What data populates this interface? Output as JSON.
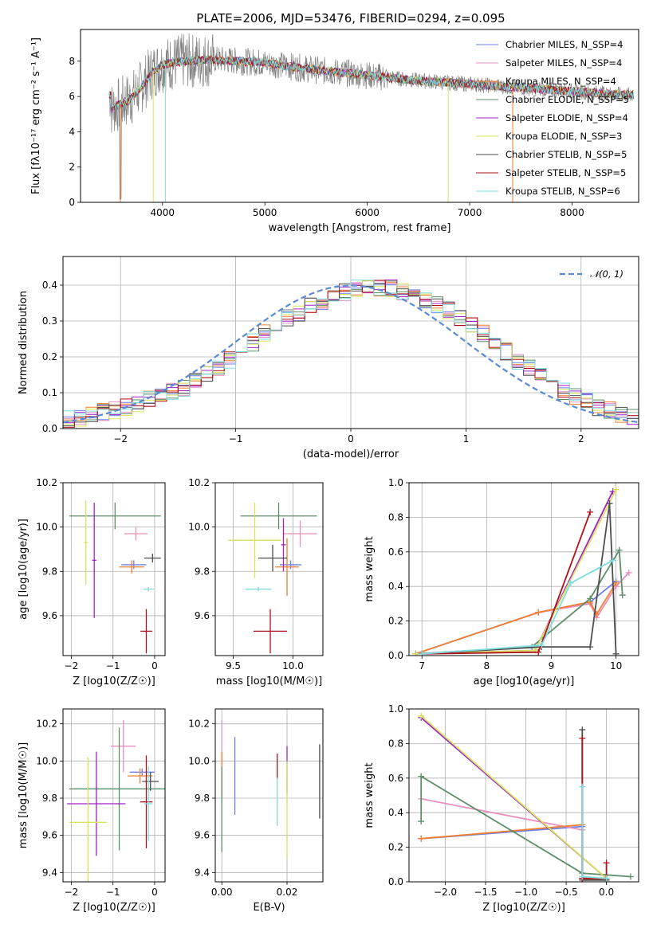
{
  "colors": {
    "chabrier_miles": "#6f7ee8",
    "salpeter_miles": "#e88fc0",
    "kroupa_miles": "#f07f2e",
    "chabrier_elodie": "#5e8f6a",
    "salpeter_elodie": "#a020c8",
    "kroupa_elodie": "#d9e35a",
    "chabrier_stelib": "#4f4f4f",
    "salpeter_stelib": "#b0101a",
    "kroupa_stelib": "#7fdde0",
    "data_spectrum": "#808080",
    "normal_curve": "#5b8ad6"
  },
  "chart_data": [
    {
      "type": "line",
      "title": "PLATE=2006, MJD=53476, FIBERID=0294, z=0.095",
      "xlabel": "wavelength [Angstrom, rest frame]",
      "ylabel": "Flux [fλ10⁻¹⁷ erg cm⁻² s⁻¹ A⁻¹]",
      "xlim": [
        3200,
        8650
      ],
      "ylim": [
        0,
        9.8
      ],
      "xticks": [
        "4000",
        "5000",
        "6000",
        "7000",
        "8000"
      ],
      "yticks": [
        "0",
        "2",
        "4",
        "6",
        "8"
      ],
      "legend_placement": "right",
      "legend": [
        "Chabrier MILES, N_SSP=4",
        "Salpeter MILES, N_SSP=4",
        "Kroupa MILES, N_SSP=4",
        "Chabrier ELODIE, N_SSP=5",
        "Salpeter ELODIE, N_SSP=4",
        "Kroupa ELODIE, N_SSP=3",
        "Chabrier STELIB, N_SSP=5",
        "Salpeter STELIB, N_SSP=5",
        "Kroupa STELIB, N_SSP=6"
      ],
      "continuum": [
        [
          3500,
          5.3
        ],
        [
          3600,
          5.6
        ],
        [
          3700,
          5.9
        ],
        [
          3800,
          6.6
        ],
        [
          3900,
          7.4
        ],
        [
          4000,
          7.8
        ],
        [
          4200,
          8.0
        ],
        [
          4500,
          8.1
        ],
        [
          5000,
          7.9
        ],
        [
          5500,
          7.5
        ],
        [
          6000,
          7.2
        ],
        [
          6500,
          6.9
        ],
        [
          7000,
          6.7
        ],
        [
          7500,
          6.5
        ],
        [
          8000,
          6.3
        ],
        [
          8500,
          6.1
        ]
      ]
    },
    {
      "type": "line",
      "xlabel": "(data-model)/error",
      "ylabel": "Normed distribution",
      "xlim": [
        -2.5,
        2.5
      ],
      "ylim": [
        0,
        0.48
      ],
      "xticks": [
        "−2",
        "−1",
        "0",
        "1",
        "2"
      ],
      "yticks": [
        "0.0",
        "0.1",
        "0.2",
        "0.3",
        "0.4"
      ],
      "grid": true,
      "legend_placement": "top-right",
      "legend": [
        "𝒩(0, 1)"
      ],
      "bin_width": 0.1,
      "hist_centers_start": -2.45,
      "hist_values": [
        0.025,
        0.03,
        0.04,
        0.045,
        0.05,
        0.06,
        0.07,
        0.08,
        0.095,
        0.105,
        0.115,
        0.13,
        0.15,
        0.17,
        0.19,
        0.215,
        0.24,
        0.265,
        0.285,
        0.31,
        0.32,
        0.34,
        0.355,
        0.37,
        0.38,
        0.39,
        0.39,
        0.395,
        0.39,
        0.38,
        0.37,
        0.36,
        0.345,
        0.33,
        0.31,
        0.29,
        0.265,
        0.24,
        0.215,
        0.19,
        0.17,
        0.145,
        0.125,
        0.105,
        0.09,
        0.075,
        0.06,
        0.05,
        0.04,
        0.03
      ]
    },
    {
      "type": "scatter",
      "xlabel": "Z [log10(Z/Z☉)]",
      "ylabel": "age  [log10(age/yr)]",
      "xlim": [
        -2.2,
        0.25
      ],
      "ylim": [
        9.42,
        10.2
      ],
      "xticks": [
        "−2",
        "−1",
        "0"
      ],
      "yticks": [
        "9.6",
        "9.8",
        "10.0",
        "10.2"
      ],
      "grid": true,
      "points": [
        {
          "model": "chabrier_miles",
          "x": -0.5,
          "y": 9.83,
          "xerr": 0.3,
          "yerr": 0.02
        },
        {
          "model": "salpeter_miles",
          "x": -0.45,
          "y": 9.97,
          "xerr": 0.28,
          "yerr": 0.03
        },
        {
          "model": "kroupa_miles",
          "x": -0.55,
          "y": 9.82,
          "xerr": 0.3,
          "yerr": 0.03
        },
        {
          "model": "chabrier_elodie",
          "x": -0.95,
          "y": 10.05,
          "xerr": 1.1,
          "yerr": 0.06
        },
        {
          "model": "salpeter_elodie",
          "x": -1.45,
          "y": 9.85,
          "xerr": 0.05,
          "yerr": 0.26
        },
        {
          "model": "kroupa_elodie",
          "x": -1.65,
          "y": 9.93,
          "xerr": 0.05,
          "yerr": 0.19
        },
        {
          "model": "chabrier_stelib",
          "x": -0.05,
          "y": 9.86,
          "xerr": 0.2,
          "yerr": 0.02
        },
        {
          "model": "salpeter_stelib",
          "x": -0.2,
          "y": 9.53,
          "xerr": 0.14,
          "yerr": 0.1
        },
        {
          "model": "kroupa_stelib",
          "x": -0.15,
          "y": 9.72,
          "xerr": 0.13,
          "yerr": 0.01
        }
      ]
    },
    {
      "type": "scatter",
      "xlabel": "mass [log10(M/M☉)]",
      "xlim": [
        9.35,
        10.25
      ],
      "ylim": [
        9.42,
        10.2
      ],
      "xticks": [
        "9.5",
        "10.0"
      ],
      "yticks": [
        "9.6",
        "9.8",
        "10.0",
        "10.2"
      ],
      "grid": true,
      "points": [
        {
          "model": "chabrier_miles",
          "x": 9.98,
          "y": 9.83,
          "xerr": 0.09,
          "yerr": 0.02
        },
        {
          "model": "salpeter_miles",
          "x": 10.06,
          "y": 9.97,
          "xerr": 0.14,
          "yerr": 0.06
        },
        {
          "model": "kroupa_miles",
          "x": 9.95,
          "y": 9.82,
          "xerr": 0.1,
          "yerr": 0.13
        },
        {
          "model": "chabrier_elodie",
          "x": 9.88,
          "y": 10.05,
          "xerr": 0.32,
          "yerr": 0.06
        },
        {
          "model": "salpeter_elodie",
          "x": 9.92,
          "y": 9.92,
          "xerr": 0.02,
          "yerr": 0.12
        },
        {
          "model": "kroupa_elodie",
          "x": 9.68,
          "y": 9.94,
          "xerr": 0.22,
          "yerr": 0.17
        },
        {
          "model": "chabrier_stelib",
          "x": 9.83,
          "y": 9.86,
          "xerr": 0.12,
          "yerr": 0.06
        },
        {
          "model": "salpeter_stelib",
          "x": 9.81,
          "y": 9.53,
          "xerr": 0.14,
          "yerr": 0.1
        },
        {
          "model": "kroupa_stelib",
          "x": 9.71,
          "y": 9.72,
          "xerr": 0.11,
          "yerr": 0.01
        }
      ]
    },
    {
      "type": "line",
      "xlabel": "age  [log10(age/yr)]",
      "ylabel": "mass weight",
      "xlim": [
        6.8,
        10.35
      ],
      "ylim": [
        0,
        1.0
      ],
      "xticks": [
        "7",
        "8",
        "9",
        "10"
      ],
      "yticks": [
        "0.0",
        "0.2",
        "0.4",
        "0.6",
        "0.8",
        "1.0"
      ],
      "grid": true,
      "series": [
        {
          "model": "chabrier_miles",
          "x": [
            6.9,
            8.8,
            9.6,
            10.0
          ],
          "y": [
            0.01,
            0.25,
            0.31,
            0.43
          ]
        },
        {
          "model": "salpeter_miles",
          "x": [
            6.9,
            8.8,
            9.6,
            9.7,
            10.0,
            10.2
          ],
          "y": [
            0.01,
            0.25,
            0.3,
            0.22,
            0.4,
            0.48
          ]
        },
        {
          "model": "kroupa_miles",
          "x": [
            6.9,
            8.8,
            9.6,
            9.7,
            10.0
          ],
          "y": [
            0.01,
            0.25,
            0.31,
            0.24,
            0.42
          ]
        },
        {
          "model": "chabrier_elodie",
          "x": [
            6.9,
            8.7,
            9.6,
            10.05,
            10.1
          ],
          "y": [
            0.01,
            0.05,
            0.33,
            0.61,
            0.35
          ]
        },
        {
          "model": "salpeter_elodie",
          "x": [
            6.9,
            8.75,
            9.95
          ],
          "y": [
            0.01,
            0.03,
            0.95
          ]
        },
        {
          "model": "kroupa_elodie",
          "x": [
            6.9,
            8.75,
            10.0
          ],
          "y": [
            0.01,
            0.03,
            0.96
          ]
        },
        {
          "model": "chabrier_stelib",
          "x": [
            7.0,
            8.85,
            9.6,
            9.9,
            10.0
          ],
          "y": [
            0.01,
            0.05,
            0.05,
            0.88,
            0.01
          ]
        },
        {
          "model": "salpeter_stelib",
          "x": [
            7.0,
            8.8,
            9.6
          ],
          "y": [
            0.01,
            0.02,
            0.83
          ]
        },
        {
          "model": "kroupa_stelib",
          "x": [
            7.0,
            8.85,
            9.3,
            9.95
          ],
          "y": [
            0.01,
            0.06,
            0.42,
            0.55
          ]
        }
      ]
    },
    {
      "type": "scatter",
      "xlabel": "Z [log10(Z/Z☉)]",
      "ylabel": "mass [log10(M/M☉)]",
      "xlim": [
        -2.2,
        0.25
      ],
      "ylim": [
        9.35,
        10.28
      ],
      "xticks": [
        "−2",
        "−1",
        "0"
      ],
      "yticks": [
        "9.4",
        "9.6",
        "9.8",
        "10.0",
        "10.2"
      ],
      "grid": true,
      "points": [
        {
          "model": "chabrier_miles",
          "x": -0.3,
          "y": 9.94,
          "xerr": 0.3,
          "yerr": 0.02
        },
        {
          "model": "salpeter_miles",
          "x": -0.75,
          "y": 10.08,
          "xerr": 0.3,
          "yerr": 0.14
        },
        {
          "model": "kroupa_miles",
          "x": -0.35,
          "y": 9.92,
          "xerr": 0.3,
          "yerr": 0.04
        },
        {
          "model": "chabrier_elodie",
          "x": -0.85,
          "y": 9.85,
          "xerr": 1.2,
          "yerr": 0.33
        },
        {
          "model": "salpeter_elodie",
          "x": -1.4,
          "y": 9.77,
          "xerr": 0.7,
          "yerr": 0.28
        },
        {
          "model": "kroupa_elodie",
          "x": -1.6,
          "y": 9.67,
          "xerr": 0.45,
          "yerr": 0.35
        },
        {
          "model": "chabrier_stelib",
          "x": -0.1,
          "y": 9.89,
          "xerr": 0.2,
          "yerr": 0.05
        },
        {
          "model": "salpeter_stelib",
          "x": -0.2,
          "y": 9.78,
          "xerr": 0.15,
          "yerr": 0.25
        },
        {
          "model": "kroupa_stelib",
          "x": -0.15,
          "y": 9.77,
          "xerr": 0.1,
          "yerr": 0.2
        }
      ]
    },
    {
      "type": "scatter",
      "xlabel": "E(B-V)",
      "xlim": [
        -0.002,
        0.031
      ],
      "ylim": [
        9.35,
        10.28
      ],
      "xticks": [
        "0.00",
        "0.02"
      ],
      "yticks": [
        "9.4",
        "9.6",
        "9.8",
        "10.0",
        "10.2"
      ],
      "grid": true,
      "points": [
        {
          "model": "chabrier_miles",
          "x": 0.004,
          "y": 9.92,
          "xerr": 0,
          "yerr": 0.21
        },
        {
          "model": "salpeter_miles",
          "x": 0.0,
          "y": 10.1,
          "xerr": 0,
          "yerr": 0.12
        },
        {
          "model": "kroupa_miles",
          "x": 0.0,
          "y": 9.93,
          "xerr": 0,
          "yerr": 0.12
        },
        {
          "model": "chabrier_elodie",
          "x": 0.0,
          "y": 9.74,
          "xerr": 0,
          "yerr": 0.23
        },
        {
          "model": "salpeter_elodie",
          "x": 0.02,
          "y": 9.95,
          "xerr": 0,
          "yerr": 0.13
        },
        {
          "model": "kroupa_elodie",
          "x": 0.02,
          "y": 9.74,
          "xerr": 0,
          "yerr": 0.26
        },
        {
          "model": "chabrier_stelib",
          "x": 0.03,
          "y": 9.89,
          "xerr": 0,
          "yerr": 0.2
        },
        {
          "model": "salpeter_stelib",
          "x": 0.017,
          "y": 9.97,
          "xerr": 0,
          "yerr": 0.07
        },
        {
          "model": "kroupa_stelib",
          "x": 0.017,
          "y": 9.78,
          "xerr": 0,
          "yerr": 0.13
        }
      ]
    },
    {
      "type": "line",
      "xlabel": "Z [log10(Z/Z☉)]",
      "ylabel": "mass weight",
      "xlim": [
        -2.45,
        0.4
      ],
      "ylim": [
        0,
        1.0
      ],
      "xticks": [
        "−2.0",
        "−1.5",
        "−1.0",
        "−0.5",
        "0.0"
      ],
      "yticks": [
        "0.0",
        "0.2",
        "0.4",
        "0.6",
        "0.8",
        "1.0"
      ],
      "grid": true,
      "series": [
        {
          "model": "chabrier_miles",
          "x": [
            -2.3,
            -0.3,
            -0.3,
            0.0
          ],
          "y": [
            0.25,
            0.32,
            0.02,
            0.01
          ]
        },
        {
          "model": "salpeter_miles",
          "x": [
            -2.3,
            -0.3,
            -0.3
          ],
          "y": [
            0.48,
            0.3,
            0.02
          ]
        },
        {
          "model": "kroupa_miles",
          "x": [
            -2.3,
            -0.3,
            -0.3,
            0.0
          ],
          "y": [
            0.25,
            0.33,
            0.02,
            0.01
          ]
        },
        {
          "model": "chabrier_elodie",
          "x": [
            -2.3,
            -2.3,
            -0.3,
            0.3
          ],
          "y": [
            0.35,
            0.61,
            0.05,
            0.03
          ]
        },
        {
          "model": "salpeter_elodie",
          "x": [
            -2.3,
            0.0
          ],
          "y": [
            0.95,
            0.02
          ]
        },
        {
          "model": "kroupa_elodie",
          "x": [
            -2.3,
            0.0
          ],
          "y": [
            0.96,
            0.02
          ]
        },
        {
          "model": "chabrier_stelib",
          "x": [
            -0.3,
            -0.3,
            0.0
          ],
          "y": [
            0.88,
            0.01,
            0.01
          ]
        },
        {
          "model": "salpeter_stelib",
          "x": [
            -0.3,
            -0.3,
            0.0,
            0.0
          ],
          "y": [
            0.83,
            0.02,
            0.02,
            0.11
          ]
        },
        {
          "model": "kroupa_stelib",
          "x": [
            -0.3,
            -0.3,
            0.0
          ],
          "y": [
            0.55,
            0.03,
            0.02
          ]
        }
      ]
    }
  ]
}
